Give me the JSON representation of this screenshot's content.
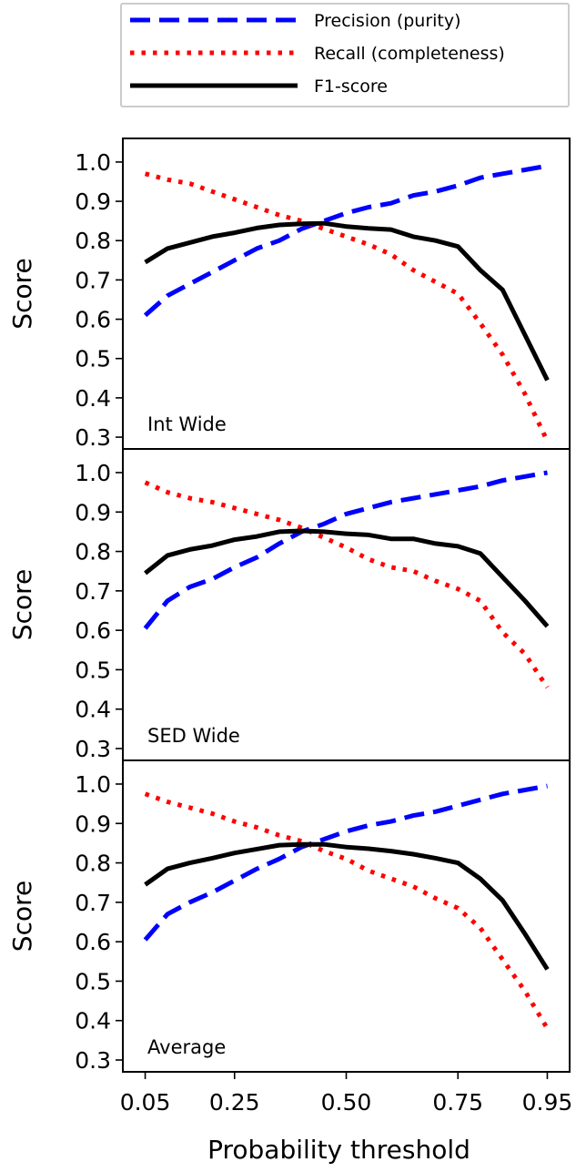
{
  "chart_data": {
    "type": "line",
    "layout": "vertical stack of 3 panels, shared x axis",
    "legend": {
      "placement": "top",
      "entries": [
        {
          "label": "Precision (purity)",
          "color": "#0000ff",
          "style": "dashed"
        },
        {
          "label": "Recall (completeness)",
          "color": "#ff0000",
          "style": "dotted"
        },
        {
          "label": "F1-score",
          "color": "#000000",
          "style": "solid"
        }
      ]
    },
    "xlabel": "Probability threshold",
    "xlim": [
      0.0,
      1.0
    ],
    "xticks": [
      0.05,
      0.25,
      0.5,
      0.75,
      0.95
    ],
    "xtick_labels": [
      "0.05",
      "0.25",
      "0.50",
      "0.75",
      "0.95"
    ],
    "x": [
      0.05,
      0.1,
      0.15,
      0.2,
      0.25,
      0.3,
      0.35,
      0.4,
      0.45,
      0.5,
      0.55,
      0.6,
      0.65,
      0.7,
      0.75,
      0.8,
      0.85,
      0.9,
      0.95
    ],
    "panels": [
      {
        "label": "Int Wide",
        "ylabel": "Score",
        "ylim": [
          0.27,
          1.06
        ],
        "yticks": [
          0.3,
          0.4,
          0.5,
          0.6,
          0.7,
          0.8,
          0.9,
          1.0
        ],
        "ytick_labels": [
          "0.3",
          "0.4",
          "0.5",
          "0.6",
          "0.7",
          "0.8",
          "0.9",
          "1.0"
        ],
        "series": [
          {
            "name": "Precision (purity)",
            "values": [
              0.61,
              0.66,
              0.69,
              0.72,
              0.75,
              0.78,
              0.8,
              0.83,
              0.85,
              0.87,
              0.885,
              0.895,
              0.915,
              0.925,
              0.94,
              0.96,
              0.97,
              0.98,
              0.99
            ]
          },
          {
            "name": "Recall (completeness)",
            "values": [
              0.97,
              0.955,
              0.945,
              0.925,
              0.905,
              0.885,
              0.865,
              0.85,
              0.83,
              0.81,
              0.79,
              0.765,
              0.725,
              0.695,
              0.665,
              0.59,
              0.51,
              0.41,
              0.29
            ]
          },
          {
            "name": "F1-score",
            "values": [
              0.745,
              0.78,
              0.795,
              0.81,
              0.82,
              0.832,
              0.84,
              0.843,
              0.844,
              0.836,
              0.831,
              0.828,
              0.81,
              0.8,
              0.785,
              0.725,
              0.675,
              0.56,
              0.445
            ]
          }
        ]
      },
      {
        "label": "SED Wide",
        "ylabel": "Score",
        "ylim": [
          0.27,
          1.06
        ],
        "yticks": [
          0.3,
          0.4,
          0.5,
          0.6,
          0.7,
          0.8,
          0.9,
          1.0
        ],
        "ytick_labels": [
          "0.3",
          "0.4",
          "0.5",
          "0.6",
          "0.7",
          "0.8",
          "0.9",
          "1.0"
        ],
        "series": [
          {
            "name": "Precision (purity)",
            "values": [
              0.605,
              0.675,
              0.71,
              0.73,
              0.76,
              0.785,
              0.82,
              0.85,
              0.87,
              0.895,
              0.91,
              0.925,
              0.935,
              0.945,
              0.955,
              0.965,
              0.98,
              0.99,
              1.0
            ]
          },
          {
            "name": "Recall (completeness)",
            "values": [
              0.975,
              0.95,
              0.935,
              0.925,
              0.91,
              0.895,
              0.88,
              0.86,
              0.835,
              0.81,
              0.78,
              0.76,
              0.75,
              0.725,
              0.705,
              0.675,
              0.595,
              0.54,
              0.455
            ]
          },
          {
            "name": "F1-score",
            "values": [
              0.745,
              0.79,
              0.805,
              0.815,
              0.83,
              0.838,
              0.85,
              0.852,
              0.85,
              0.845,
              0.842,
              0.832,
              0.832,
              0.82,
              0.813,
              0.795,
              0.735,
              0.675,
              0.61
            ]
          }
        ]
      },
      {
        "label": "Average",
        "ylabel": "Score",
        "ylim": [
          0.27,
          1.06
        ],
        "yticks": [
          0.3,
          0.4,
          0.5,
          0.6,
          0.7,
          0.8,
          0.9,
          1.0
        ],
        "ytick_labels": [
          "0.3",
          "0.4",
          "0.5",
          "0.6",
          "0.7",
          "0.8",
          "0.9",
          "1.0"
        ],
        "series": [
          {
            "name": "Precision (purity)",
            "values": [
              0.605,
              0.67,
              0.7,
              0.725,
              0.755,
              0.785,
              0.81,
              0.84,
              0.86,
              0.88,
              0.895,
              0.905,
              0.92,
              0.93,
              0.945,
              0.96,
              0.975,
              0.985,
              0.995
            ]
          },
          {
            "name": "Recall (completeness)",
            "values": [
              0.975,
              0.955,
              0.94,
              0.925,
              0.905,
              0.89,
              0.87,
              0.855,
              0.83,
              0.81,
              0.78,
              0.76,
              0.74,
              0.71,
              0.685,
              0.635,
              0.555,
              0.475,
              0.38
            ]
          },
          {
            "name": "F1-score",
            "values": [
              0.745,
              0.785,
              0.8,
              0.812,
              0.825,
              0.835,
              0.845,
              0.847,
              0.847,
              0.84,
              0.836,
              0.83,
              0.822,
              0.812,
              0.8,
              0.76,
              0.705,
              0.62,
              0.53
            ]
          }
        ]
      }
    ]
  }
}
